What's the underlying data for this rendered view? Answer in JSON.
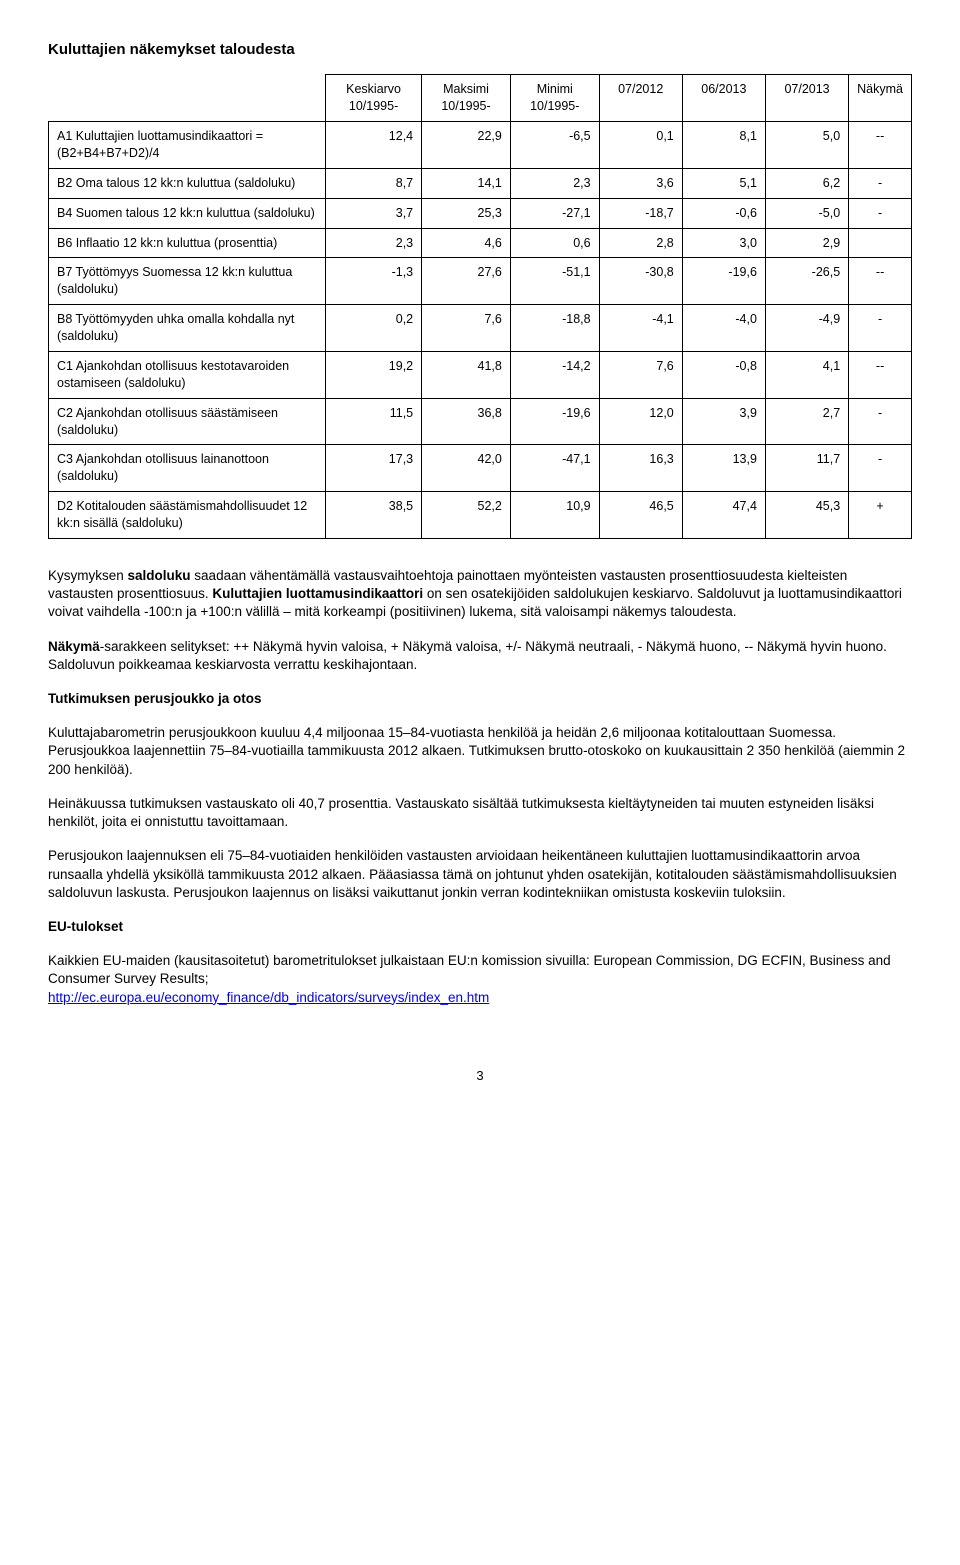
{
  "title": "Kuluttajien näkemykset taloudesta",
  "table": {
    "columns": [
      "",
      "Keskiarvo\n10/1995-",
      "Maksimi\n10/1995-",
      "Minimi\n10/1995-",
      "07/2012",
      "06/2013",
      "07/2013",
      "Näkymä"
    ],
    "rows": [
      {
        "label": "A1 Kuluttajien luottamusindikaattori = (B2+B4+B7+D2)/4",
        "vals": [
          "12,4",
          "22,9",
          "-6,5",
          "0,1",
          "8,1",
          "5,0",
          "--"
        ]
      },
      {
        "label": "B2 Oma talous 12 kk:n kuluttua (saldoluku)",
        "vals": [
          "8,7",
          "14,1",
          "2,3",
          "3,6",
          "5,1",
          "6,2",
          "-"
        ]
      },
      {
        "label": "B4 Suomen talous 12 kk:n kuluttua (saldoluku)",
        "vals": [
          "3,7",
          "25,3",
          "-27,1",
          "-18,7",
          "-0,6",
          "-5,0",
          "-"
        ]
      },
      {
        "label": "B6 Inflaatio 12 kk:n kuluttua (prosenttia)",
        "vals": [
          "2,3",
          "4,6",
          "0,6",
          "2,8",
          "3,0",
          "2,9",
          ""
        ]
      },
      {
        "label": "B7 Työttömyys Suomessa 12 kk:n kuluttua (saldoluku)",
        "vals": [
          "-1,3",
          "27,6",
          "-51,1",
          "-30,8",
          "-19,6",
          "-26,5",
          "--"
        ]
      },
      {
        "label": "B8 Työttömyyden uhka omalla kohdalla nyt (saldoluku)",
        "vals": [
          "0,2",
          "7,6",
          "-18,8",
          "-4,1",
          "-4,0",
          "-4,9",
          "-"
        ]
      },
      {
        "label": "C1 Ajankohdan otollisuus kestotavaroiden ostamiseen (saldoluku)",
        "vals": [
          "19,2",
          "41,8",
          "-14,2",
          "7,6",
          "-0,8",
          "4,1",
          "--"
        ]
      },
      {
        "label": "C2 Ajankohdan otollisuus säästämiseen (saldoluku)",
        "vals": [
          "11,5",
          "36,8",
          "-19,6",
          "12,0",
          "3,9",
          "2,7",
          "-"
        ]
      },
      {
        "label": "C3 Ajankohdan otollisuus lainanottoon (saldoluku)",
        "vals": [
          "17,3",
          "42,0",
          "-47,1",
          "16,3",
          "13,9",
          "11,7",
          "-"
        ]
      },
      {
        "label": "D2 Kotitalouden säästämismahdollisuudet 12 kk:n sisällä (saldoluku)",
        "vals": [
          "38,5",
          "52,2",
          "10,9",
          "46,5",
          "47,4",
          "45,3",
          "+"
        ]
      }
    ]
  },
  "paras": {
    "p1a": "Kysymyksen ",
    "p1b": "saldoluku",
    "p1c": " saadaan vähentämällä vastausvaihtoehtoja painottaen myönteisten vastausten prosenttiosuudesta kielteisten vastausten prosenttiosuus. ",
    "p1d": "Kuluttajien luottamusindikaattori",
    "p1e": " on sen osatekijöiden saldolukujen keskiarvo. Saldoluvut ja luottamusindikaattori voivat vaihdella -100:n ja +100:n välillä – mitä korkeampi (positiivinen) lukema, sitä valoisampi näkemys taloudesta.",
    "p2a": "Näkymä",
    "p2b": "-sarakkeen selitykset: ++ Näkymä hyvin valoisa, + Näkymä valoisa, +/- Näkymä neutraali, - Näkymä huono, -- Näkymä hyvin huono. Saldoluvun poikkeamaa keskiarvosta verrattu keskihajontaan.",
    "h3": "Tutkimuksen perusjoukko ja otos",
    "p3": "Kuluttajabarometrin perusjoukkoon kuuluu 4,4 miljoonaa 15–84-vuotiasta henkilöä ja heidän 2,6 miljoonaa kotitalouttaan Suomessa. Perusjoukkoa laajennettiin 75–84-vuotiailla tammikuusta 2012 alkaen. Tutkimuksen brutto-otoskoko on kuukausittain 2 350 henkilöä (aiemmin 2 200 henkilöä).",
    "p4": "Heinäkuussa tutkimuksen vastauskato oli 40,7 prosenttia. Vastauskato sisältää tutkimuksesta kieltäytyneiden tai muuten estyneiden lisäksi henkilöt, joita ei onnistuttu tavoittamaan.",
    "p5": "Perusjoukon laajennuksen eli 75–84-vuotiaiden henkilöiden vastausten arvioidaan heikentäneen kuluttajien luottamusindikaattorin arvoa runsaalla yhdellä yksiköllä tammikuusta 2012 alkaen. Pääasiassa tämä on johtunut yhden osatekijän, kotitalouden säästämismahdollisuuksien saldoluvun laskusta. Perusjoukon laajennus on lisäksi vaikuttanut jonkin verran kodintekniikan omistusta koskeviin tuloksiin.",
    "h4": "EU-tulokset",
    "p6": "Kaikkien EU-maiden (kausitasoitetut) barometritulokset julkaistaan EU:n komission sivuilla: European Commission, DG ECFIN, Business and Consumer Survey Results;",
    "link": "http://ec.europa.eu/economy_finance/db_indicators/surveys/index_en.htm"
  },
  "pagenum": "3"
}
